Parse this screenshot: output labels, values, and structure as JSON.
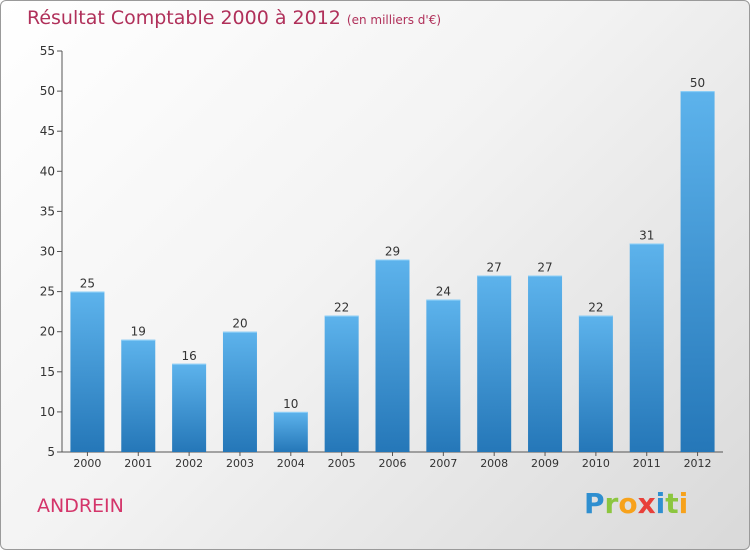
{
  "header": {
    "title": "Résultat Comptable 2000 à 2012",
    "subtitle": "(en milliers d'€)"
  },
  "footer": {
    "place": "ANDREIN",
    "logo_letters": [
      "P",
      "r",
      "o",
      "x",
      "i",
      "t",
      "i"
    ],
    "logo_colors": [
      "#2f8fd0",
      "#8cc63f",
      "#f7a21b",
      "#e8403a",
      "#2f8fd0",
      "#8cc63f",
      "#f7a21b"
    ]
  },
  "colors": {
    "bar_top": "#5db3ec",
    "bar_bottom": "#2577b8",
    "title": "#b0305a",
    "place": "#d4356a"
  },
  "chart_data": {
    "type": "bar",
    "title": "Résultat Comptable 2000 à 2012",
    "subtitle": "(en milliers d'€)",
    "categories": [
      "2000",
      "2001",
      "2002",
      "2003",
      "2004",
      "2005",
      "2006",
      "2007",
      "2008",
      "2009",
      "2010",
      "2011",
      "2012"
    ],
    "values": [
      25,
      19,
      16,
      20,
      10,
      22,
      29,
      24,
      27,
      27,
      22,
      31,
      50
    ],
    "ylim": [
      5,
      55
    ],
    "yticks": [
      5,
      10,
      15,
      20,
      25,
      30,
      35,
      40,
      45,
      50,
      55
    ],
    "grid": false,
    "legend": "none",
    "data_labels": true
  }
}
